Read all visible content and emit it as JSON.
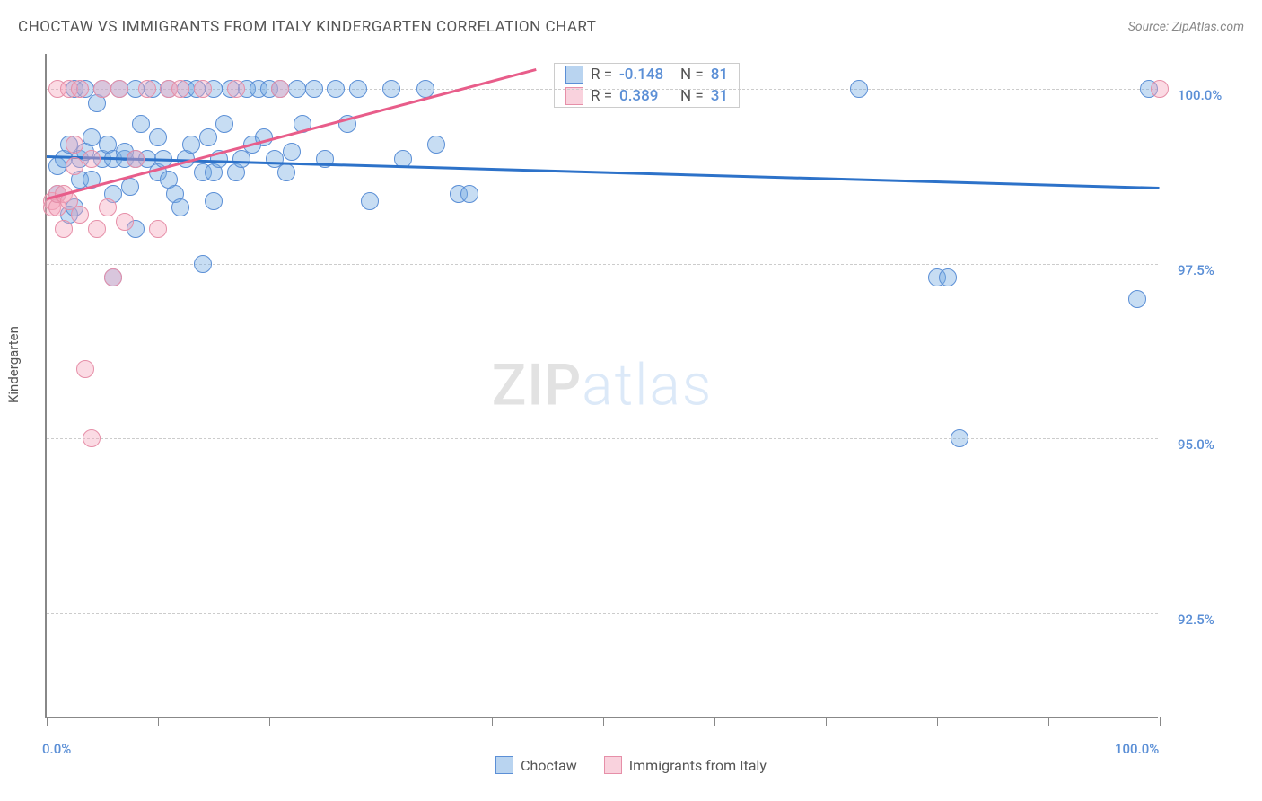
{
  "header": {
    "title": "CHOCTAW VS IMMIGRANTS FROM ITALY KINDERGARTEN CORRELATION CHART",
    "source_prefix": "Source: ",
    "source_name": "ZipAtlas.com"
  },
  "chart": {
    "type": "scatter",
    "y_axis_label": "Kindergarten",
    "xlim": [
      0,
      100
    ],
    "ylim": [
      91,
      100.5
    ],
    "x_ticks": [
      0,
      10,
      20,
      30,
      40,
      50,
      60,
      70,
      80,
      90,
      100
    ],
    "x_tick_labels_shown": {
      "0": "0.0%",
      "100": "100.0%"
    },
    "y_ticks": [
      92.5,
      95.0,
      97.5,
      100.0
    ],
    "y_tick_labels": [
      "92.5%",
      "95.0%",
      "97.5%",
      "100.0%"
    ],
    "background_color": "#ffffff",
    "grid_color": "#cccccc",
    "axis_color": "#888888",
    "text_color": "#555555",
    "value_color": "#5b8fd6",
    "marker_radius": 10,
    "marker_opacity": 0.4,
    "series": [
      {
        "name": "Choctaw",
        "color_fill": "#74a9e2",
        "color_stroke": "#5b8fd6",
        "trend_color": "#2d72c9",
        "R": "-0.148",
        "N": "81",
        "trend": {
          "x1": 0,
          "y1": 99.05,
          "x2": 100,
          "y2": 98.6
        },
        "points": [
          [
            1,
            98.5
          ],
          [
            1,
            98.9
          ],
          [
            1.5,
            99.0
          ],
          [
            2,
            99.2
          ],
          [
            2,
            98.2
          ],
          [
            2.5,
            98.3
          ],
          [
            2.5,
            100
          ],
          [
            3,
            99.0
          ],
          [
            3,
            98.7
          ],
          [
            3.5,
            99.1
          ],
          [
            3.5,
            100
          ],
          [
            4,
            98.7
          ],
          [
            4,
            99.3
          ],
          [
            4.5,
            99.8
          ],
          [
            5,
            99.0
          ],
          [
            5,
            100
          ],
          [
            5.5,
            99.2
          ],
          [
            6,
            99.0
          ],
          [
            6,
            98.5
          ],
          [
            6,
            97.3
          ],
          [
            6.5,
            100
          ],
          [
            7,
            99.0
          ],
          [
            7,
            99.1
          ],
          [
            7.5,
            98.6
          ],
          [
            8,
            100
          ],
          [
            8,
            99.0
          ],
          [
            8,
            98.0
          ],
          [
            8.5,
            99.5
          ],
          [
            9,
            99.0
          ],
          [
            9.5,
            100
          ],
          [
            10,
            99.3
          ],
          [
            10,
            98.8
          ],
          [
            10.5,
            99.0
          ],
          [
            11,
            100
          ],
          [
            11,
            98.7
          ],
          [
            11.5,
            98.5
          ],
          [
            12,
            98.3
          ],
          [
            12.5,
            100
          ],
          [
            12.5,
            99.0
          ],
          [
            13,
            99.2
          ],
          [
            13.5,
            100
          ],
          [
            14,
            98.8
          ],
          [
            14,
            97.5
          ],
          [
            14.5,
            99.3
          ],
          [
            15,
            100
          ],
          [
            15,
            98.8
          ],
          [
            15,
            98.4
          ],
          [
            15.5,
            99.0
          ],
          [
            16,
            99.5
          ],
          [
            16.5,
            100
          ],
          [
            17,
            98.8
          ],
          [
            17.5,
            99.0
          ],
          [
            18,
            100
          ],
          [
            18.5,
            99.2
          ],
          [
            19,
            100
          ],
          [
            19.5,
            99.3
          ],
          [
            20,
            100
          ],
          [
            20.5,
            99.0
          ],
          [
            21,
            100
          ],
          [
            21.5,
            98.8
          ],
          [
            22,
            99.1
          ],
          [
            22.5,
            100
          ],
          [
            23,
            99.5
          ],
          [
            24,
            100
          ],
          [
            25,
            99.0
          ],
          [
            26,
            100
          ],
          [
            27,
            99.5
          ],
          [
            28,
            100
          ],
          [
            29,
            98.4
          ],
          [
            31,
            100
          ],
          [
            32,
            99.0
          ],
          [
            34,
            100
          ],
          [
            35,
            99.2
          ],
          [
            37,
            98.5
          ],
          [
            38,
            98.5
          ],
          [
            73,
            100
          ],
          [
            80,
            97.3
          ],
          [
            81,
            97.3
          ],
          [
            82,
            95.0
          ],
          [
            98,
            97.0
          ],
          [
            99,
            100
          ]
        ]
      },
      {
        "name": "Immigrants from Italy",
        "color_fill": "#f4a6bc",
        "color_stroke": "#e68fa8",
        "trend_color": "#e85d8a",
        "R": "0.389",
        "N": "31",
        "trend": {
          "x1": 0,
          "y1": 98.45,
          "x2": 44,
          "y2": 100.3
        },
        "points": [
          [
            0.5,
            98.4
          ],
          [
            0.5,
            98.3
          ],
          [
            1,
            98.3
          ],
          [
            1,
            98.5
          ],
          [
            1,
            100
          ],
          [
            1.5,
            98.0
          ],
          [
            1.5,
            98.5
          ],
          [
            2,
            98.4
          ],
          [
            2,
            100
          ],
          [
            2.5,
            98.9
          ],
          [
            2.5,
            99.2
          ],
          [
            3,
            100
          ],
          [
            3,
            98.2
          ],
          [
            3.5,
            96.0
          ],
          [
            4,
            95.0
          ],
          [
            4,
            99.0
          ],
          [
            4.5,
            98.0
          ],
          [
            5,
            100
          ],
          [
            5.5,
            98.3
          ],
          [
            6,
            97.3
          ],
          [
            6.5,
            100
          ],
          [
            7,
            98.1
          ],
          [
            8,
            99.0
          ],
          [
            9,
            100
          ],
          [
            10,
            98.0
          ],
          [
            11,
            100
          ],
          [
            12,
            100
          ],
          [
            14,
            100
          ],
          [
            17,
            100
          ],
          [
            21,
            100
          ],
          [
            100,
            100
          ]
        ]
      }
    ],
    "legend_stats": {
      "R_label": "R =",
      "N_label": "N ="
    },
    "bottom_legend": [
      {
        "swatch": "blue",
        "label": "Choctaw"
      },
      {
        "swatch": "pink",
        "label": "Immigrants from Italy"
      }
    ],
    "watermark": {
      "part1": "ZIP",
      "part2": "atlas"
    }
  }
}
